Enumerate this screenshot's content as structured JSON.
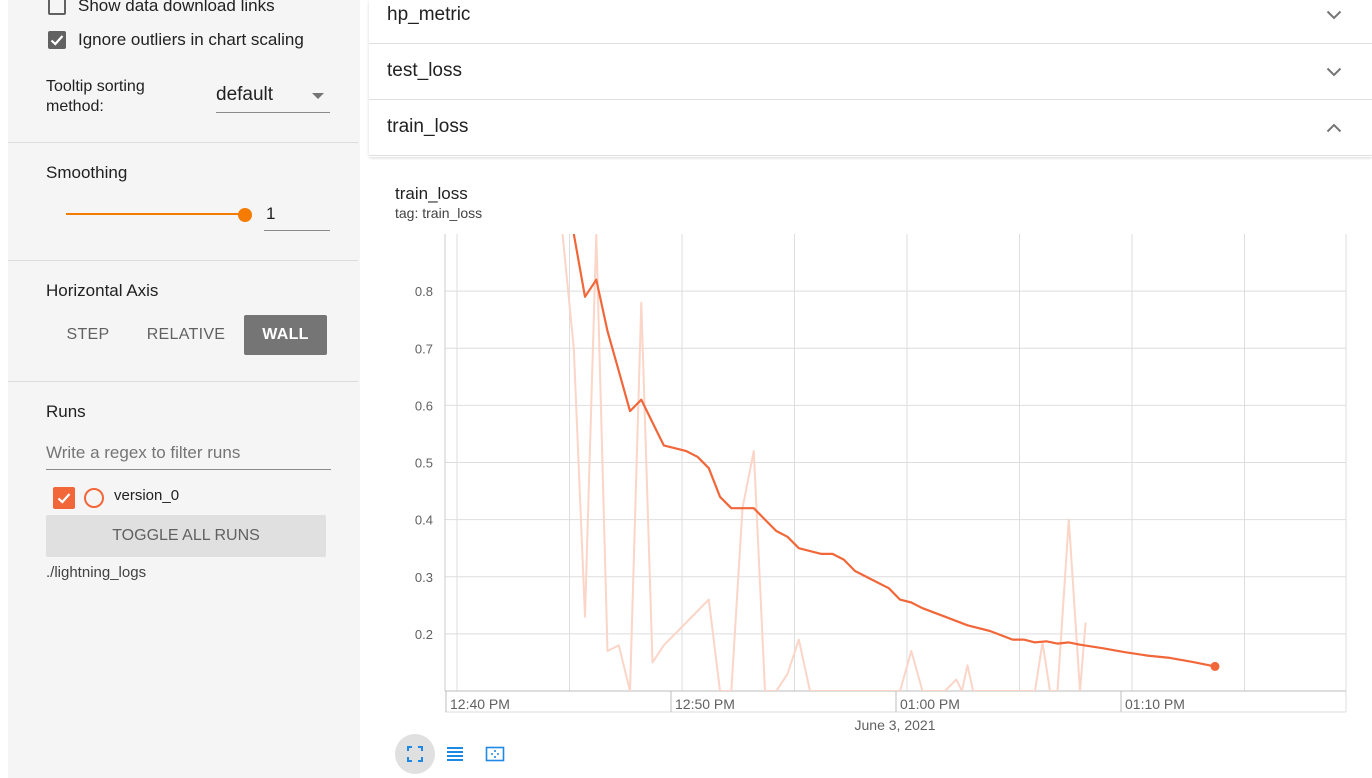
{
  "sidebar": {
    "show_download_links": {
      "label": "Show data download links",
      "checked": false
    },
    "ignore_outliers": {
      "label": "Ignore outliers in chart scaling",
      "checked": true
    },
    "tooltip_sorting": {
      "label_line1": "Tooltip sorting",
      "label_line2": "method:",
      "value": "default"
    },
    "smoothing": {
      "label": "Smoothing",
      "value": "1"
    },
    "horizontal_axis": {
      "label": "Horizontal Axis",
      "options": [
        "STEP",
        "RELATIVE",
        "WALL"
      ],
      "selected": "WALL"
    },
    "runs": {
      "label": "Runs",
      "filter_placeholder": "Write a regex to filter runs",
      "items": [
        {
          "name": "version_0",
          "checked": true,
          "color": "#f1673a"
        }
      ],
      "toggle_all_label": "TOGGLE ALL RUNS",
      "log_dir": "./lightning_logs"
    }
  },
  "cards": [
    {
      "title": "hp_metric",
      "expanded": false
    },
    {
      "title": "test_loss",
      "expanded": false
    },
    {
      "title": "train_loss",
      "expanded": true
    }
  ],
  "chart": {
    "title": "train_loss",
    "tag": "tag: train_loss",
    "date_label": "June 3, 2021",
    "toolbar": [
      "fit-domain-icon",
      "toggle-log-scale-icon",
      "fit-to-data-icon"
    ]
  },
  "colors": {
    "accent": "#f57c00",
    "run": "#f1673a",
    "run_raw": "#fbd5c7"
  },
  "chart_data": {
    "type": "line",
    "title": "train_loss",
    "xlabel": "",
    "ylabel": "",
    "x_axis": "wall time",
    "x_ticks": [
      "12:40 PM",
      "12:50 PM",
      "01:00 PM",
      "01:10 PM"
    ],
    "ylim": [
      0.1,
      0.9
    ],
    "y_ticks": [
      0.2,
      0.3,
      0.4,
      0.5,
      0.6,
      0.7,
      0.8
    ],
    "grid": true,
    "series": [
      {
        "name": "version_0",
        "style": "smoothed",
        "x": [
          "12:45:30",
          "12:46:00",
          "12:46:30",
          "12:47:00",
          "12:47:30",
          "12:48:00",
          "12:48:30",
          "12:49:00",
          "12:49:30",
          "12:50:30",
          "12:51:00",
          "12:51:30",
          "12:52:00",
          "12:52:30",
          "12:53:00",
          "12:53:30",
          "12:54:00",
          "12:54:30",
          "12:55:00",
          "12:55:30",
          "12:56:30",
          "12:57:00",
          "12:57:30",
          "12:58:00",
          "12:59:00",
          "12:59:30",
          "01:00:00",
          "01:00:30",
          "01:01:00",
          "01:02:00",
          "01:03:00",
          "01:04:00",
          "01:05:00",
          "01:05:30",
          "01:06:00",
          "01:06:30",
          "01:07:00",
          "01:07:30",
          "01:08:00",
          "01:09:00",
          "01:10:00",
          "01:11:00",
          "01:12:00",
          "01:13:00",
          "01:14:00"
        ],
        "values": [
          0.9,
          0.79,
          0.82,
          0.73,
          0.66,
          0.59,
          0.61,
          0.57,
          0.53,
          0.52,
          0.51,
          0.49,
          0.44,
          0.42,
          0.42,
          0.42,
          0.4,
          0.38,
          0.37,
          0.35,
          0.34,
          0.34,
          0.33,
          0.31,
          0.29,
          0.28,
          0.26,
          0.255,
          0.245,
          0.23,
          0.215,
          0.205,
          0.19,
          0.19,
          0.185,
          0.187,
          0.183,
          0.185,
          0.181,
          0.175,
          0.168,
          0.162,
          0.158,
          0.151,
          0.143
        ]
      },
      {
        "name": "version_0",
        "style": "raw",
        "x": [
          "12:45:00",
          "12:45:30",
          "12:46:00",
          "12:46:30",
          "12:47:00",
          "12:47:30",
          "12:48:00",
          "12:48:30",
          "12:49:00",
          "12:49:30",
          "12:50:00",
          "12:51:00",
          "12:51:30",
          "12:52:00",
          "12:52:30",
          "12:53:00",
          "12:53:30",
          "12:54:00",
          "12:54:30",
          "12:55:00",
          "12:55:30",
          "12:56:00",
          "12:56:30",
          "12:57:00",
          "01:00:00",
          "01:00:30",
          "01:01:00",
          "01:02:00",
          "01:02:30",
          "01:02:45",
          "01:03:00",
          "01:03:15",
          "01:06:00",
          "01:06:20",
          "01:06:40",
          "01:07:00",
          "01:07:30",
          "01:08:00",
          "01:08:15"
        ],
        "values": [
          0.9,
          0.7,
          0.23,
          0.9,
          0.17,
          0.18,
          0.1,
          0.78,
          0.15,
          0.18,
          0.2,
          0.24,
          0.26,
          0.1,
          0.1,
          0.42,
          0.52,
          0.1,
          0.1,
          0.13,
          0.19,
          0.1,
          0.1,
          0.1,
          0.1,
          0.17,
          0.1,
          0.1,
          0.12,
          0.1,
          0.145,
          0.1,
          0.1,
          0.185,
          0.1,
          0.1,
          0.4,
          0.1,
          0.22
        ]
      }
    ]
  }
}
